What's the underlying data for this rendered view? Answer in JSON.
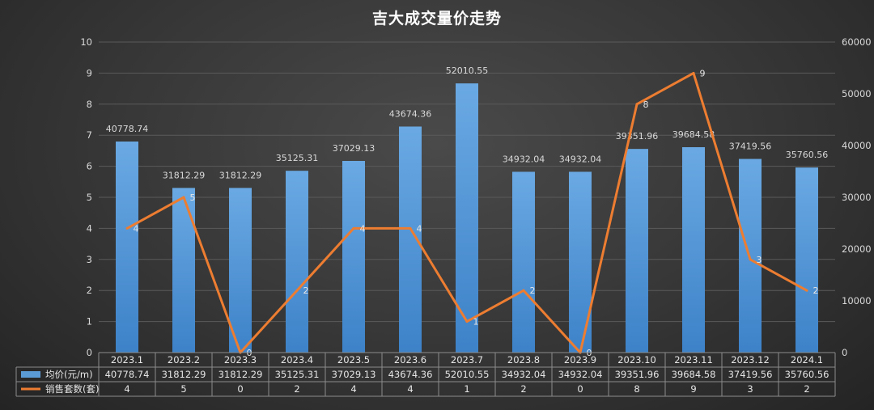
{
  "chart_data": {
    "type": "bar",
    "title": "吉大成交量价走势",
    "categories": [
      "2023.1",
      "2023.2",
      "2023.3",
      "2023.4",
      "2023.5",
      "2023.6",
      "2023.7",
      "2023.8",
      "2023.9",
      "2023.10",
      "2023.11",
      "2023.12",
      "2024.1"
    ],
    "series": [
      {
        "name": "均价(元/m)",
        "type": "bar",
        "axis": "right",
        "color": "#5b9bd5",
        "values": [
          40778.74,
          31812.29,
          31812.29,
          35125.31,
          37029.13,
          43674.36,
          52010.55,
          34932.04,
          34932.04,
          39351.96,
          39684.58,
          37419.56,
          35760.56
        ],
        "labels": [
          "40778.74",
          "31812.29",
          "31812.29",
          "35125.31",
          "37029.13",
          "43674.36",
          "52010.55",
          "34932.04",
          "34932.04",
          "39351.96",
          "39684.58",
          "37419.56",
          "35760.56"
        ]
      },
      {
        "name": "销售套数(套)",
        "type": "line",
        "axis": "left",
        "color": "#ed7d31",
        "values": [
          4,
          5,
          0,
          2,
          4,
          4,
          1,
          2,
          0,
          8,
          9,
          3,
          2
        ],
        "labels": [
          "4",
          "5",
          "0",
          "2",
          "4",
          "4",
          "1",
          "2",
          "0",
          "8",
          "9",
          "3",
          "2"
        ]
      }
    ],
    "y_left": {
      "min": 0,
      "max": 10,
      "ticks": [
        "0",
        "1",
        "2",
        "3",
        "4",
        "5",
        "6",
        "7",
        "8",
        "9",
        "10"
      ]
    },
    "y_right": {
      "min": 0,
      "max": 60000,
      "ticks": [
        "0",
        "10000",
        "20000",
        "30000",
        "40000",
        "50000",
        "60000"
      ]
    },
    "grid": true,
    "legend": "data-table-bottom"
  }
}
